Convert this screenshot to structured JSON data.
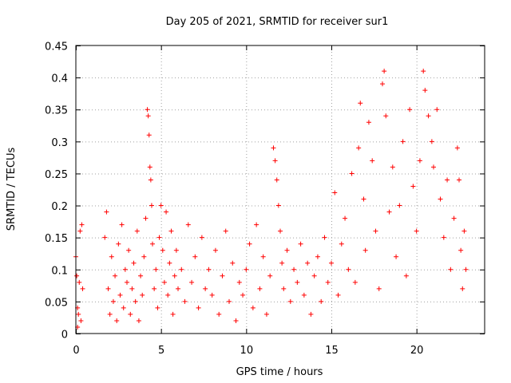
{
  "chart_data": {
    "type": "scatter",
    "title": "Day 205 of 2021, SRMTID for receiver sur1",
    "xlabel": "GPS time / hours",
    "ylabel": "SRMTID / TECUs",
    "xlim": [
      0,
      24
    ],
    "ylim": [
      0,
      0.45
    ],
    "xticks": [
      0,
      5,
      10,
      15,
      20
    ],
    "xtick_labels": [
      "0",
      "5",
      "10",
      "15",
      "20"
    ],
    "yticks": [
      0,
      0.05,
      0.1,
      0.15,
      0.2,
      0.25,
      0.3,
      0.35,
      0.4,
      0.45
    ],
    "ytick_labels": [
      "0",
      "0.05",
      "0.1",
      "0.15",
      "0.2",
      "0.25",
      "0.3",
      "0.35",
      "0.4",
      "0.45"
    ],
    "grid": true,
    "marker": "+",
    "color": "#ff0000",
    "series": [
      {
        "name": "SRMTID",
        "points": [
          [
            0.0,
            0.12
          ],
          [
            0.05,
            0.09
          ],
          [
            0.1,
            0.04
          ],
          [
            0.15,
            0.03
          ],
          [
            0.2,
            0.08
          ],
          [
            0.25,
            0.16
          ],
          [
            0.3,
            0.02
          ],
          [
            0.35,
            0.17
          ],
          [
            0.4,
            0.07
          ],
          [
            0.1,
            0.01
          ],
          [
            1.7,
            0.15
          ],
          [
            1.8,
            0.19
          ],
          [
            1.9,
            0.07
          ],
          [
            2.0,
            0.03
          ],
          [
            2.1,
            0.12
          ],
          [
            2.2,
            0.05
          ],
          [
            2.3,
            0.09
          ],
          [
            2.4,
            0.02
          ],
          [
            2.5,
            0.14
          ],
          [
            2.6,
            0.06
          ],
          [
            2.7,
            0.17
          ],
          [
            2.8,
            0.04
          ],
          [
            2.9,
            0.1
          ],
          [
            3.0,
            0.08
          ],
          [
            3.1,
            0.13
          ],
          [
            3.2,
            0.03
          ],
          [
            3.3,
            0.07
          ],
          [
            3.4,
            0.11
          ],
          [
            3.5,
            0.05
          ],
          [
            3.6,
            0.16
          ],
          [
            3.7,
            0.02
          ],
          [
            3.8,
            0.09
          ],
          [
            3.9,
            0.06
          ],
          [
            4.0,
            0.12
          ],
          [
            4.1,
            0.18
          ],
          [
            4.2,
            0.35
          ],
          [
            4.25,
            0.34
          ],
          [
            4.3,
            0.31
          ],
          [
            4.35,
            0.26
          ],
          [
            4.4,
            0.24
          ],
          [
            4.45,
            0.2
          ],
          [
            4.5,
            0.14
          ],
          [
            4.6,
            0.07
          ],
          [
            4.7,
            0.1
          ],
          [
            4.8,
            0.04
          ],
          [
            4.9,
            0.15
          ],
          [
            5.0,
            0.2
          ],
          [
            5.1,
            0.13
          ],
          [
            5.2,
            0.08
          ],
          [
            5.3,
            0.19
          ],
          [
            5.4,
            0.06
          ],
          [
            5.5,
            0.11
          ],
          [
            5.6,
            0.16
          ],
          [
            5.7,
            0.03
          ],
          [
            5.8,
            0.09
          ],
          [
            5.9,
            0.13
          ],
          [
            6.0,
            0.07
          ],
          [
            6.2,
            0.1
          ],
          [
            6.4,
            0.05
          ],
          [
            6.6,
            0.17
          ],
          [
            6.8,
            0.08
          ],
          [
            7.0,
            0.12
          ],
          [
            7.2,
            0.04
          ],
          [
            7.4,
            0.15
          ],
          [
            7.6,
            0.07
          ],
          [
            7.8,
            0.1
          ],
          [
            8.0,
            0.06
          ],
          [
            8.2,
            0.13
          ],
          [
            8.4,
            0.03
          ],
          [
            8.6,
            0.09
          ],
          [
            8.8,
            0.16
          ],
          [
            9.0,
            0.05
          ],
          [
            9.2,
            0.11
          ],
          [
            9.4,
            0.02
          ],
          [
            9.6,
            0.08
          ],
          [
            9.8,
            0.06
          ],
          [
            10.0,
            0.1
          ],
          [
            10.2,
            0.14
          ],
          [
            10.4,
            0.04
          ],
          [
            10.6,
            0.17
          ],
          [
            10.8,
            0.07
          ],
          [
            11.0,
            0.12
          ],
          [
            11.2,
            0.03
          ],
          [
            11.4,
            0.09
          ],
          [
            11.6,
            0.29
          ],
          [
            11.7,
            0.27
          ],
          [
            11.8,
            0.24
          ],
          [
            11.9,
            0.2
          ],
          [
            12.0,
            0.16
          ],
          [
            12.1,
            0.11
          ],
          [
            12.2,
            0.07
          ],
          [
            12.4,
            0.13
          ],
          [
            12.6,
            0.05
          ],
          [
            12.8,
            0.1
          ],
          [
            13.0,
            0.08
          ],
          [
            13.2,
            0.14
          ],
          [
            13.4,
            0.06
          ],
          [
            13.6,
            0.11
          ],
          [
            13.8,
            0.03
          ],
          [
            14.0,
            0.09
          ],
          [
            14.2,
            0.12
          ],
          [
            14.4,
            0.05
          ],
          [
            14.6,
            0.15
          ],
          [
            14.8,
            0.08
          ],
          [
            15.0,
            0.11
          ],
          [
            15.2,
            0.22
          ],
          [
            15.4,
            0.06
          ],
          [
            15.6,
            0.14
          ],
          [
            15.8,
            0.18
          ],
          [
            16.0,
            0.1
          ],
          [
            16.2,
            0.25
          ],
          [
            16.4,
            0.08
          ],
          [
            16.6,
            0.29
          ],
          [
            16.7,
            0.36
          ],
          [
            16.9,
            0.21
          ],
          [
            17.0,
            0.13
          ],
          [
            17.2,
            0.33
          ],
          [
            17.4,
            0.27
          ],
          [
            17.6,
            0.16
          ],
          [
            17.8,
            0.07
          ],
          [
            18.0,
            0.39
          ],
          [
            18.1,
            0.41
          ],
          [
            18.2,
            0.34
          ],
          [
            18.4,
            0.19
          ],
          [
            18.6,
            0.26
          ],
          [
            18.8,
            0.12
          ],
          [
            19.0,
            0.2
          ],
          [
            19.2,
            0.3
          ],
          [
            19.4,
            0.09
          ],
          [
            19.6,
            0.35
          ],
          [
            19.8,
            0.23
          ],
          [
            20.0,
            0.16
          ],
          [
            20.2,
            0.27
          ],
          [
            20.4,
            0.41
          ],
          [
            20.5,
            0.38
          ],
          [
            20.7,
            0.34
          ],
          [
            20.9,
            0.3
          ],
          [
            21.0,
            0.26
          ],
          [
            21.2,
            0.35
          ],
          [
            21.4,
            0.21
          ],
          [
            21.6,
            0.15
          ],
          [
            21.8,
            0.24
          ],
          [
            22.0,
            0.1
          ],
          [
            22.2,
            0.18
          ],
          [
            22.4,
            0.29
          ],
          [
            22.5,
            0.24
          ],
          [
            22.6,
            0.13
          ],
          [
            22.7,
            0.07
          ],
          [
            22.8,
            0.16
          ],
          [
            22.9,
            0.1
          ]
        ]
      }
    ]
  }
}
